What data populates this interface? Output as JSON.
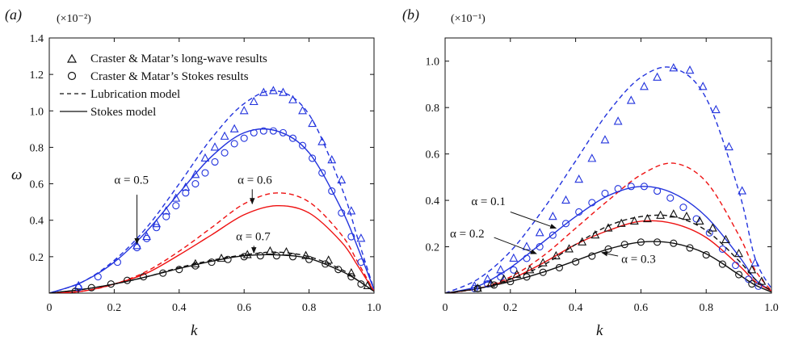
{
  "figure": {
    "panel_a_label": "(a)",
    "panel_b_label": "(b)",
    "exp_a": "(×10⁻²)",
    "exp_b": "(×10⁻¹)",
    "ylabel": "ω",
    "xlabel": "k"
  },
  "legend": [
    {
      "label": "Craster & Matar’s long-wave results",
      "symbol": "triangle"
    },
    {
      "label": "Craster & Matar’s Stokes results",
      "symbol": "circle"
    },
    {
      "label": "Lubrication model",
      "symbol": "dashed"
    },
    {
      "label": "Stokes model",
      "symbol": "solid"
    }
  ],
  "colors": {
    "blue": "#2233dd",
    "red": "#ee1111",
    "black": "#111111"
  },
  "chart_data": [
    {
      "type": "line",
      "panel": "a",
      "xlabel": "k",
      "ylabel": "ω",
      "xlim": [
        0,
        1
      ],
      "ylim": [
        0,
        1.4
      ],
      "xticks": [
        0,
        0.2,
        0.4,
        0.6,
        0.8,
        1.0
      ],
      "xtick_labels": [
        "0",
        "0.2",
        "0.4",
        "0.6",
        "0.8",
        "1.0"
      ],
      "yticks": [
        0,
        0.2,
        0.4,
        0.6,
        0.8,
        1.0,
        1.2,
        1.4
      ],
      "ytick_labels": [
        "",
        "0.2",
        "0.4",
        "0.6",
        "0.8",
        "1.0",
        "1.2",
        "1.4"
      ],
      "series": [
        {
          "model": "lubrication",
          "color": "blue",
          "x": [
            0,
            0.1,
            0.2,
            0.3,
            0.4,
            0.5,
            0.6,
            0.7,
            0.8,
            0.9,
            0.95,
            1.0
          ],
          "y": [
            0,
            0.06,
            0.18,
            0.36,
            0.6,
            0.85,
            1.04,
            1.11,
            0.98,
            0.58,
            0.3,
            0.02
          ]
        },
        {
          "model": "stokes",
          "color": "blue",
          "x": [
            0,
            0.1,
            0.2,
            0.3,
            0.4,
            0.5,
            0.6,
            0.7,
            0.8,
            0.9,
            0.95,
            1.0
          ],
          "y": [
            0,
            0.06,
            0.17,
            0.34,
            0.55,
            0.75,
            0.88,
            0.89,
            0.77,
            0.46,
            0.25,
            0.02
          ]
        },
        {
          "model": "lubrication",
          "color": "red",
          "x": [
            0,
            0.1,
            0.2,
            0.3,
            0.4,
            0.5,
            0.6,
            0.7,
            0.8,
            0.9,
            0.95,
            1.0
          ],
          "y": [
            0,
            0.01,
            0.05,
            0.12,
            0.23,
            0.36,
            0.49,
            0.55,
            0.5,
            0.32,
            0.17,
            0.01
          ]
        },
        {
          "model": "stokes",
          "color": "red",
          "x": [
            0,
            0.1,
            0.2,
            0.3,
            0.4,
            0.5,
            0.6,
            0.7,
            0.8,
            0.9,
            0.95,
            1.0
          ],
          "y": [
            0,
            0.01,
            0.05,
            0.11,
            0.21,
            0.32,
            0.43,
            0.48,
            0.44,
            0.28,
            0.15,
            0.01
          ]
        },
        {
          "model": "lubrication",
          "color": "black",
          "x": [
            0,
            0.1,
            0.2,
            0.3,
            0.4,
            0.5,
            0.6,
            0.7,
            0.8,
            0.9,
            0.95,
            1.0
          ],
          "y": [
            0,
            0.02,
            0.05,
            0.09,
            0.14,
            0.18,
            0.21,
            0.225,
            0.2,
            0.13,
            0.07,
            0.01
          ]
        },
        {
          "model": "stokes",
          "color": "black",
          "x": [
            0,
            0.1,
            0.2,
            0.3,
            0.4,
            0.5,
            0.6,
            0.7,
            0.8,
            0.9,
            0.95,
            1.0
          ],
          "y": [
            0,
            0.02,
            0.05,
            0.09,
            0.135,
            0.175,
            0.205,
            0.21,
            0.19,
            0.12,
            0.07,
            0.01
          ]
        }
      ],
      "markers": [
        {
          "symbol": "triangle",
          "color": "blue",
          "x": [
            0.09,
            0.27,
            0.3,
            0.33,
            0.36,
            0.39,
            0.42,
            0.45,
            0.48,
            0.51,
            0.54,
            0.57,
            0.6,
            0.63,
            0.66,
            0.69,
            0.72,
            0.75,
            0.78,
            0.81,
            0.84,
            0.87,
            0.9,
            0.93,
            0.96
          ],
          "y": [
            0.04,
            0.26,
            0.31,
            0.38,
            0.45,
            0.52,
            0.58,
            0.65,
            0.74,
            0.8,
            0.86,
            0.9,
            1.0,
            1.05,
            1.1,
            1.11,
            1.1,
            1.06,
            1.0,
            0.93,
            0.83,
            0.73,
            0.62,
            0.45,
            0.3
          ]
        },
        {
          "symbol": "circle",
          "color": "blue",
          "x": [
            0.09,
            0.15,
            0.21,
            0.27,
            0.3,
            0.33,
            0.36,
            0.39,
            0.42,
            0.45,
            0.48,
            0.51,
            0.54,
            0.57,
            0.6,
            0.63,
            0.66,
            0.69,
            0.72,
            0.75,
            0.78,
            0.81,
            0.84,
            0.87,
            0.9,
            0.93,
            0.96
          ],
          "y": [
            0.03,
            0.09,
            0.17,
            0.25,
            0.3,
            0.36,
            0.42,
            0.48,
            0.55,
            0.6,
            0.66,
            0.72,
            0.77,
            0.82,
            0.85,
            0.88,
            0.89,
            0.89,
            0.88,
            0.85,
            0.81,
            0.74,
            0.66,
            0.56,
            0.44,
            0.31,
            0.17
          ]
        },
        {
          "symbol": "triangle",
          "color": "black",
          "x": [
            0.45,
            0.53,
            0.61,
            0.68,
            0.73,
            0.79,
            0.86,
            0.93,
            0.98
          ],
          "y": [
            0.16,
            0.19,
            0.21,
            0.23,
            0.225,
            0.205,
            0.18,
            0.11,
            0.04
          ]
        },
        {
          "symbol": "circle",
          "color": "black",
          "x": [
            0.08,
            0.13,
            0.19,
            0.24,
            0.29,
            0.35,
            0.4,
            0.45,
            0.5,
            0.55,
            0.6,
            0.65,
            0.7,
            0.75,
            0.8,
            0.85,
            0.89,
            0.93,
            0.96
          ],
          "y": [
            0.01,
            0.03,
            0.05,
            0.07,
            0.09,
            0.11,
            0.13,
            0.15,
            0.17,
            0.185,
            0.2,
            0.205,
            0.205,
            0.2,
            0.185,
            0.16,
            0.13,
            0.09,
            0.05
          ]
        }
      ],
      "annotations": [
        {
          "text": "α = 0.5",
          "x": 0.2,
          "y": 0.6,
          "ax": 0.27,
          "ay": 0.54,
          "bx": 0.27,
          "by": 0.27
        },
        {
          "text": "α = 0.6",
          "x": 0.58,
          "y": 0.6,
          "ax": 0.625,
          "ay": 0.57,
          "bx": 0.625,
          "by": 0.49
        },
        {
          "text": "α = 0.7",
          "x": 0.575,
          "y": 0.29,
          "ax": 0.63,
          "ay": 0.26,
          "bx": 0.63,
          "by": 0.22
        }
      ]
    },
    {
      "type": "line",
      "panel": "b",
      "xlabel": "k",
      "ylabel": "",
      "xlim": [
        0,
        1
      ],
      "ylim": [
        0,
        1.1
      ],
      "xticks": [
        0,
        0.2,
        0.4,
        0.6,
        0.8,
        1.0
      ],
      "xtick_labels": [
        "0",
        "0.2",
        "0.4",
        "0.6",
        "0.8",
        "1.0"
      ],
      "yticks": [
        0,
        0.2,
        0.4,
        0.6,
        0.8,
        1.0
      ],
      "ytick_labels": [
        "",
        "0.2",
        "0.4",
        "0.6",
        "0.8",
        "1.0"
      ],
      "series": [
        {
          "model": "lubrication",
          "color": "blue",
          "x": [
            0,
            0.1,
            0.2,
            0.3,
            0.4,
            0.5,
            0.6,
            0.7,
            0.8,
            0.9,
            0.95,
            1.0
          ],
          "y": [
            0,
            0.06,
            0.18,
            0.36,
            0.57,
            0.78,
            0.93,
            0.97,
            0.84,
            0.44,
            0.15,
            0.02
          ]
        },
        {
          "model": "stokes",
          "color": "blue",
          "x": [
            0,
            0.1,
            0.2,
            0.3,
            0.4,
            0.5,
            0.6,
            0.7,
            0.8,
            0.9,
            0.95,
            1.0
          ],
          "y": [
            0,
            0.03,
            0.11,
            0.22,
            0.33,
            0.42,
            0.46,
            0.43,
            0.33,
            0.16,
            0.06,
            0.01
          ]
        },
        {
          "model": "lubrication",
          "color": "red",
          "x": [
            0,
            0.1,
            0.2,
            0.3,
            0.4,
            0.5,
            0.6,
            0.7,
            0.8,
            0.9,
            0.95,
            1.0
          ],
          "y": [
            0,
            0.02,
            0.07,
            0.16,
            0.28,
            0.4,
            0.51,
            0.56,
            0.48,
            0.25,
            0.1,
            0.01
          ]
        },
        {
          "model": "stokes",
          "color": "red",
          "x": [
            0,
            0.1,
            0.2,
            0.3,
            0.4,
            0.5,
            0.6,
            0.7,
            0.8,
            0.9,
            0.95,
            1.0
          ],
          "y": [
            0,
            0.02,
            0.06,
            0.13,
            0.21,
            0.27,
            0.31,
            0.3,
            0.24,
            0.12,
            0.05,
            0.01
          ]
        },
        {
          "model": "lubrication",
          "color": "black",
          "x": [
            0,
            0.1,
            0.2,
            0.3,
            0.4,
            0.5,
            0.6,
            0.7,
            0.8,
            0.9,
            0.95,
            1.0
          ],
          "y": [
            0,
            0.02,
            0.06,
            0.12,
            0.21,
            0.29,
            0.33,
            0.33,
            0.27,
            0.14,
            0.06,
            0.01
          ]
        },
        {
          "model": "stokes",
          "color": "black",
          "x": [
            0,
            0.1,
            0.2,
            0.3,
            0.4,
            0.5,
            0.6,
            0.7,
            0.8,
            0.9,
            0.95,
            1.0
          ],
          "y": [
            0,
            0.02,
            0.05,
            0.09,
            0.14,
            0.19,
            0.22,
            0.215,
            0.17,
            0.08,
            0.035,
            0.005
          ]
        }
      ],
      "markers": [
        {
          "symbol": "triangle",
          "color": "blue",
          "x": [
            0.09,
            0.13,
            0.17,
            0.21,
            0.25,
            0.29,
            0.33,
            0.37,
            0.41,
            0.45,
            0.49,
            0.53,
            0.57,
            0.61,
            0.65,
            0.7,
            0.75,
            0.79,
            0.83,
            0.87,
            0.91,
            0.95
          ],
          "y": [
            0.03,
            0.06,
            0.1,
            0.15,
            0.2,
            0.26,
            0.33,
            0.4,
            0.49,
            0.58,
            0.66,
            0.74,
            0.83,
            0.89,
            0.93,
            0.97,
            0.96,
            0.89,
            0.79,
            0.63,
            0.44,
            0.13
          ]
        },
        {
          "symbol": "circle",
          "color": "blue",
          "x": [
            0.09,
            0.13,
            0.17,
            0.21,
            0.25,
            0.29,
            0.33,
            0.37,
            0.41,
            0.45,
            0.49,
            0.53,
            0.57,
            0.61,
            0.65,
            0.69,
            0.73,
            0.77,
            0.81,
            0.85,
            0.89,
            0.93,
            0.96
          ],
          "y": [
            0.02,
            0.04,
            0.07,
            0.1,
            0.15,
            0.2,
            0.25,
            0.3,
            0.35,
            0.39,
            0.43,
            0.45,
            0.46,
            0.46,
            0.44,
            0.41,
            0.37,
            0.32,
            0.26,
            0.19,
            0.12,
            0.06,
            0.03
          ]
        },
        {
          "symbol": "triangle",
          "color": "black",
          "x": [
            0.1,
            0.14,
            0.18,
            0.22,
            0.26,
            0.3,
            0.34,
            0.38,
            0.42,
            0.46,
            0.5,
            0.54,
            0.58,
            0.62,
            0.66,
            0.7,
            0.74,
            0.78,
            0.82,
            0.86,
            0.9,
            0.94,
            0.97
          ],
          "y": [
            0.02,
            0.04,
            0.06,
            0.08,
            0.1,
            0.13,
            0.16,
            0.19,
            0.22,
            0.25,
            0.28,
            0.3,
            0.31,
            0.32,
            0.335,
            0.34,
            0.33,
            0.31,
            0.28,
            0.23,
            0.17,
            0.1,
            0.05
          ]
        },
        {
          "symbol": "circle",
          "color": "black",
          "x": [
            0.1,
            0.15,
            0.2,
            0.25,
            0.3,
            0.35,
            0.4,
            0.45,
            0.5,
            0.55,
            0.6,
            0.65,
            0.7,
            0.75,
            0.8,
            0.85,
            0.9,
            0.94
          ],
          "y": [
            0.02,
            0.035,
            0.05,
            0.07,
            0.09,
            0.11,
            0.135,
            0.16,
            0.19,
            0.21,
            0.22,
            0.22,
            0.215,
            0.195,
            0.165,
            0.125,
            0.08,
            0.04
          ]
        }
      ],
      "annotations": [
        {
          "text": "α = 0.1",
          "x": 0.08,
          "y": 0.38,
          "ax": 0.2,
          "ay": 0.35,
          "bx": 0.34,
          "by": 0.28
        },
        {
          "text": "α = 0.2",
          "x": 0.015,
          "y": 0.24,
          "ax": 0.15,
          "ay": 0.24,
          "bx": 0.28,
          "by": 0.17
        },
        {
          "text": "α = 0.3",
          "x": 0.54,
          "y": 0.13,
          "ax": 0.53,
          "ay": 0.16,
          "bx": 0.48,
          "by": 0.175
        }
      ]
    }
  ]
}
